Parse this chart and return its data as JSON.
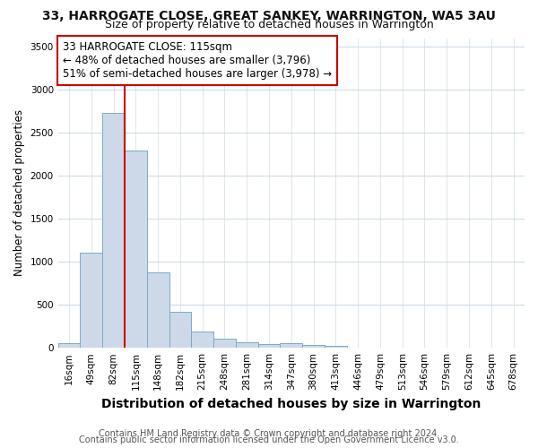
{
  "title": "33, HARROGATE CLOSE, GREAT SANKEY, WARRINGTON, WA5 3AU",
  "subtitle": "Size of property relative to detached houses in Warrington",
  "xlabel": "Distribution of detached houses by size in Warrington",
  "ylabel": "Number of detached properties",
  "categories": [
    "16sqm",
    "49sqm",
    "82sqm",
    "115sqm",
    "148sqm",
    "182sqm",
    "215sqm",
    "248sqm",
    "281sqm",
    "314sqm",
    "347sqm",
    "380sqm",
    "413sqm",
    "446sqm",
    "479sqm",
    "513sqm",
    "546sqm",
    "579sqm",
    "612sqm",
    "645sqm",
    "678sqm"
  ],
  "values": [
    55,
    1110,
    2730,
    2290,
    880,
    420,
    185,
    110,
    60,
    45,
    50,
    30,
    25,
    0,
    0,
    0,
    0,
    0,
    0,
    0,
    0
  ],
  "bar_color": "#cdd9e8",
  "bar_edge_color": "#7aaac8",
  "vline_color": "#cc0000",
  "vline_index": 3,
  "annotation_text1": "33 HARROGATE CLOSE: 115sqm",
  "annotation_text2": "← 48% of detached houses are smaller (3,796)",
  "annotation_text3": "51% of semi-detached houses are larger (3,978) →",
  "annotation_box_facecolor": "#ffffff",
  "annotation_box_edgecolor": "#cc0000",
  "ylim": [
    0,
    3600
  ],
  "yticks": [
    0,
    500,
    1000,
    1500,
    2000,
    2500,
    3000,
    3500
  ],
  "footer1": "Contains HM Land Registry data © Crown copyright and database right 2024.",
  "footer2": "Contains public sector information licensed under the Open Government Licence v3.0.",
  "bg_color": "#ffffff",
  "plot_bg_color": "#ffffff",
  "grid_color": "#d0dce8",
  "title_fontsize": 10,
  "subtitle_fontsize": 9,
  "xlabel_fontsize": 10,
  "ylabel_fontsize": 8.5,
  "tick_fontsize": 7.5,
  "annotation_fontsize": 8.5,
  "footer_fontsize": 7
}
